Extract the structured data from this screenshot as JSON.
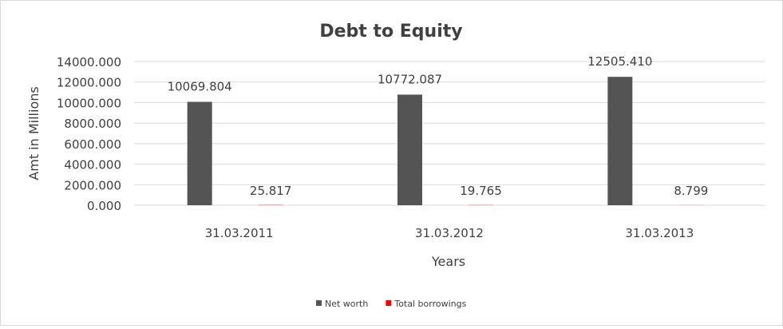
{
  "chart_data": {
    "type": "bar",
    "title": "Debt to Equity",
    "xlabel": "Years",
    "ylabel": "Amt in Millions",
    "categories": [
      "31.03.2011",
      "31.03.2012",
      "31.03.2013"
    ],
    "series": [
      {
        "name": "Net worth",
        "color": "#545454",
        "values": [
          10069.804,
          10772.087,
          12505.41
        ],
        "labels": [
          "10069.804",
          "10772.087",
          "12505.410"
        ]
      },
      {
        "name": "Total borrowings",
        "color": "#ff0000",
        "values": [
          25.817,
          19.765,
          8.799
        ],
        "labels": [
          "25.817",
          "19.765",
          "8.799"
        ]
      }
    ],
    "ylim": [
      0,
      14000
    ],
    "yticks": [
      "0.000",
      "2000.000",
      "4000.000",
      "6000.000",
      "8000.000",
      "10000.000",
      "12000.000",
      "14000.000"
    ],
    "grid": true,
    "legend": "bottom"
  }
}
